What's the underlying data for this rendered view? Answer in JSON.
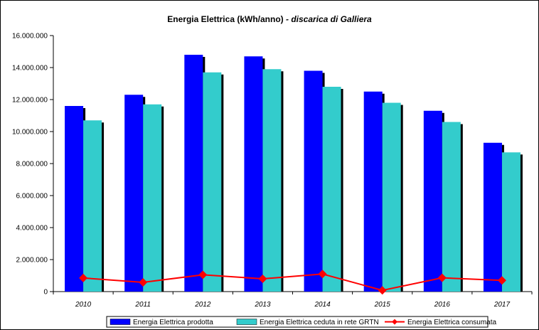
{
  "chart_data": {
    "type": "bar",
    "title": "Energia Elettrica (kWh/anno)",
    "subtitle": "- discarica di Galliera",
    "categories": [
      "2010",
      "2011",
      "2012",
      "2013",
      "2014",
      "2015",
      "2016",
      "2017"
    ],
    "series": [
      {
        "name": "Energia Elettrica prodotta",
        "kind": "bar",
        "color": "#0000ff",
        "values": [
          11600000,
          12300000,
          14800000,
          14700000,
          13800000,
          12500000,
          11300000,
          9300000
        ]
      },
      {
        "name": "Energia Elettrica ceduta in rete GRTN",
        "kind": "bar",
        "color": "#33cccc",
        "values": [
          10700000,
          11700000,
          13700000,
          13900000,
          12800000,
          11800000,
          10600000,
          8700000
        ]
      },
      {
        "name": "Energia Elettrica consumata",
        "kind": "line",
        "color": "#ff0000",
        "values": [
          850000,
          580000,
          1050000,
          800000,
          1100000,
          80000,
          860000,
          700000
        ]
      }
    ],
    "ylim": [
      0,
      16000000
    ],
    "yticks": [
      "0",
      "2.000.000",
      "4.000.000",
      "6.000.000",
      "8.000.000",
      "10.000.000",
      "12.000.000",
      "14.000.000",
      "16.000.000"
    ],
    "ytick_values": [
      0,
      2000000,
      4000000,
      6000000,
      8000000,
      10000000,
      12000000,
      14000000,
      16000000
    ],
    "grid": false,
    "legend_position": "bottom"
  }
}
